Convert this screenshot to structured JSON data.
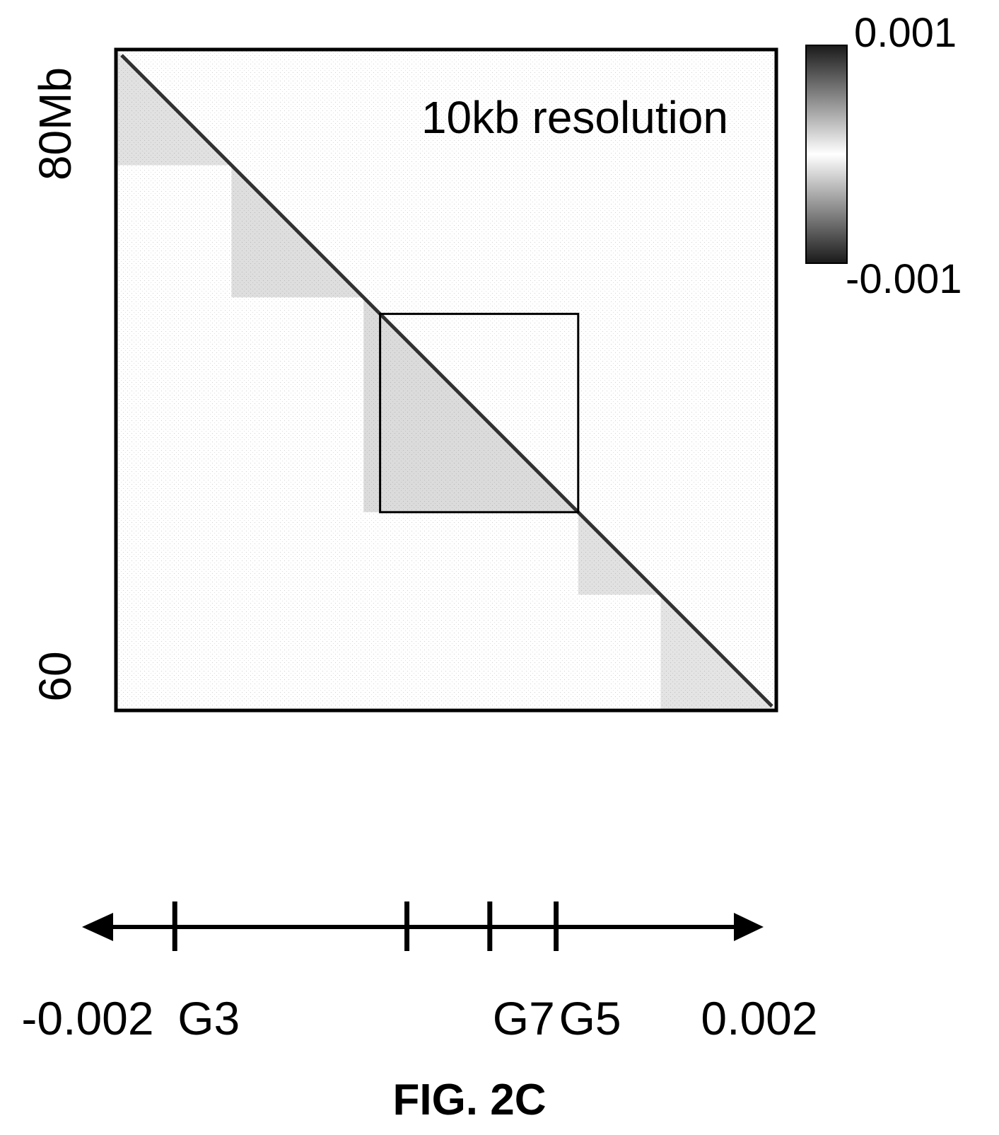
{
  "chart_data": [
    {
      "type": "heatmap",
      "annotation": "10kb resolution",
      "y_tick_labels": [
        "80Mb",
        "60"
      ],
      "y_range": [
        60,
        80
      ],
      "colorbar": {
        "max_label": "0.001",
        "min_label": "-0.001",
        "range": [
          -0.001,
          0.001
        ]
      },
      "highlight_box": {
        "start": 72,
        "end": 66
      },
      "diagonal_enrichment": [
        {
          "start": 80,
          "end": 76.5,
          "intensity": 0.5
        },
        {
          "start": 76.5,
          "end": 72.5,
          "intensity": 0.55
        },
        {
          "start": 72.5,
          "end": 66,
          "intensity": 0.6
        },
        {
          "start": 66,
          "end": 63.5,
          "intensity": 0.5
        },
        {
          "start": 63.5,
          "end": 60,
          "intensity": 0.45
        }
      ]
    },
    {
      "type": "line",
      "axis_range": [
        -0.002,
        0.002
      ],
      "end_labels": [
        "-0.002",
        "0.002"
      ],
      "markers": [
        {
          "label": "G3",
          "value": -0.0015
        },
        {
          "label": "",
          "value": -0.0001
        },
        {
          "label": "G7",
          "value": 0.0004
        },
        {
          "label": "G5",
          "value": 0.0008
        }
      ]
    }
  ],
  "caption": "FIG. 2C"
}
